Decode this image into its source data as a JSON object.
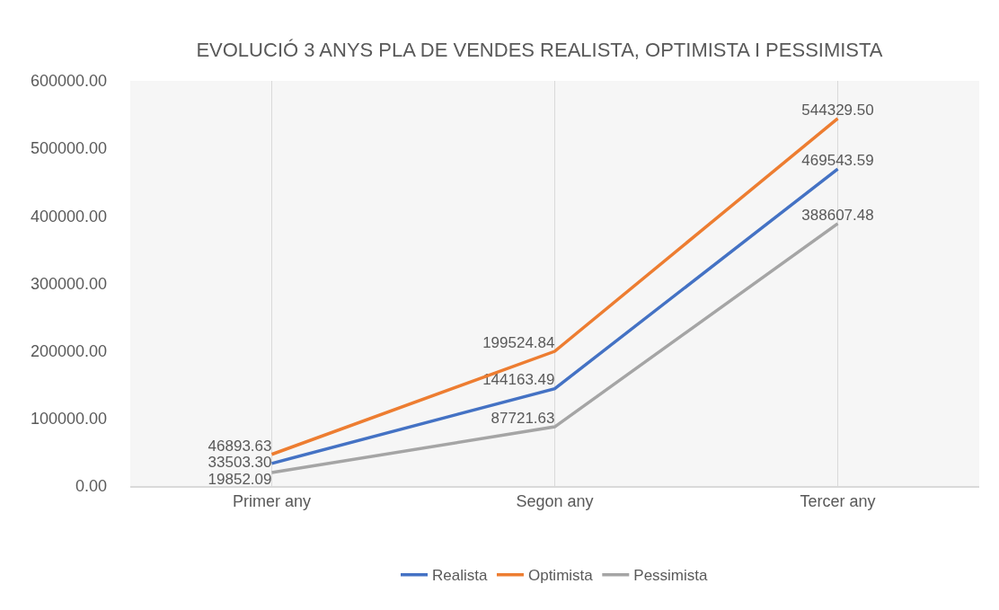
{
  "chart_data": {
    "type": "line",
    "title": "EVOLUCIÓ 3 ANYS PLA DE VENDES REALISTA, OPTIMISTA I PESSIMISTA",
    "categories": [
      "Primer any",
      "Segon any",
      "Tercer any"
    ],
    "series": [
      {
        "name": "Realista",
        "color": "#4472c4",
        "values": [
          33503.3,
          144163.49,
          469543.59
        ],
        "value_labels": [
          "33503.30",
          "144163.49",
          "469543.59"
        ]
      },
      {
        "name": "Optimista",
        "color": "#ed7d31",
        "values": [
          46893.63,
          199524.84,
          544329.5
        ],
        "value_labels": [
          "46893.63",
          "199524.84",
          "544329.50"
        ]
      },
      {
        "name": "Pessimista",
        "color": "#a5a5a5",
        "values": [
          19852.09,
          87721.63,
          388607.48
        ],
        "value_labels": [
          "19852.09",
          "87721.63",
          "388607.48"
        ]
      }
    ],
    "ylim": [
      0,
      600000
    ],
    "yticks": [
      {
        "value": 0,
        "label": "0.00"
      },
      {
        "value": 100000,
        "label": "100000.00"
      },
      {
        "value": 200000,
        "label": "200000.00"
      },
      {
        "value": 300000,
        "label": "300000.00"
      },
      {
        "value": 400000,
        "label": "400000.00"
      },
      {
        "value": 500000,
        "label": "500000.00"
      },
      {
        "value": 600000,
        "label": "600000.00"
      }
    ],
    "grid": "x",
    "legend": "bottom",
    "marker": "none",
    "line_style": "solid"
  }
}
